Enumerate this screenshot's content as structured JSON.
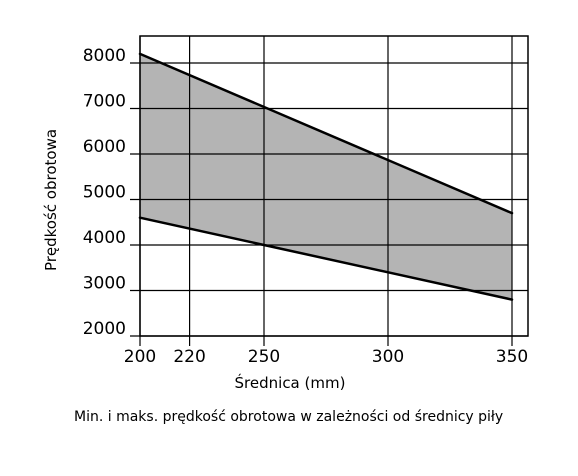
{
  "caption": "Min. i maks. prędkość obrotowa w zależności od średnicy piły",
  "colors": {
    "band_fill": "#b4b4b4",
    "line": "#000000",
    "grid": "#000000",
    "background": "#ffffff"
  },
  "chart_data": {
    "type": "area",
    "title": "",
    "xlabel": "Średnica (mm)",
    "ylabel": "Prędkość obrotowa",
    "xlim": [
      200,
      350
    ],
    "ylim": [
      2000,
      8000
    ],
    "x_ticks": [
      200,
      220,
      250,
      300,
      350
    ],
    "y_ticks": [
      2000,
      3000,
      4000,
      5000,
      6000,
      7000,
      8000
    ],
    "x_tick_labels": [
      "200",
      "220",
      "250",
      "300",
      "350"
    ],
    "y_tick_labels": [
      "2000",
      "3000",
      "4000",
      "5000",
      "6000",
      "7000",
      "8000"
    ],
    "grid": true,
    "legend": "none",
    "fill_between": true,
    "series": [
      {
        "x": [
          200,
          350
        ],
        "values": [
          8200,
          4700
        ]
      },
      {
        "x": [
          200,
          350
        ],
        "values": [
          4600,
          2800
        ]
      }
    ]
  }
}
